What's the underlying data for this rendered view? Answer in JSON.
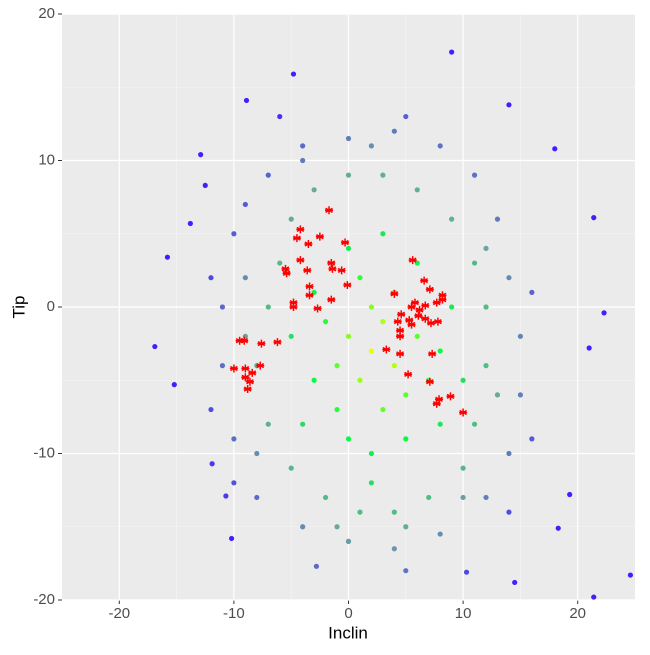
{
  "chart_data": {
    "type": "scatter",
    "x_label": "Inclin",
    "y_label": "Tip",
    "xlim": [
      -25,
      25
    ],
    "ylim": [
      -20,
      20
    ],
    "xticks": [
      -20,
      -10,
      0,
      10,
      20
    ],
    "yticks": [
      -20,
      -10,
      0,
      10,
      20
    ],
    "x_minor": [
      -15,
      -5,
      5,
      15
    ],
    "y_minor": [
      -15,
      -5,
      5,
      15
    ],
    "grid": true,
    "series": [
      {
        "colors": [
          "#ffff00",
          "#00ff40",
          "#6fa3a0",
          "#4020ff"
        ],
        "marker": "circle",
        "x": [
          2,
          3,
          1,
          4,
          0,
          5,
          -1,
          3,
          2,
          6,
          -2,
          1,
          4,
          -1,
          5,
          0,
          7,
          -3,
          2,
          8,
          -3,
          6,
          0,
          3,
          -4,
          8,
          2,
          9,
          -5,
          10,
          -6,
          -7,
          -8,
          -7,
          -5,
          -2,
          1,
          4,
          7,
          10,
          11,
          12,
          12,
          11,
          9,
          6,
          3,
          0,
          -3,
          -5,
          -9,
          -8,
          13,
          10,
          -1,
          5,
          -9,
          12,
          -4,
          2,
          -10,
          -11,
          -11,
          -10,
          -8,
          -4,
          0,
          4,
          8,
          12,
          14,
          15,
          15,
          14,
          13,
          11,
          8,
          4,
          0,
          -4,
          -7,
          -9,
          -12,
          -12,
          16,
          14,
          -6,
          5,
          16,
          -10,
          -15.8,
          -16.9,
          -15.2,
          -12.9,
          -12.5,
          -13.8,
          -8.9,
          -4.8,
          9,
          14,
          18,
          21.4,
          22.3,
          21,
          24.6,
          21.4,
          14.5,
          18.3,
          19.3,
          -11.9,
          -10.7,
          -10.2,
          -2.8,
          5,
          10.3,
          0
        ],
        "y": [
          -3,
          -1,
          -5,
          -4,
          -2,
          -6,
          -4,
          -7,
          0,
          -2,
          -1,
          2,
          1,
          -7,
          -9,
          -9,
          -5,
          -5,
          -10,
          -3,
          1,
          3,
          4,
          5,
          -8,
          -8,
          -12,
          0,
          -2,
          -5,
          3,
          0,
          -4,
          -8,
          -11,
          -13,
          -14,
          -14,
          -13,
          -11,
          -8,
          -4,
          0,
          3,
          6,
          8,
          9,
          9,
          8,
          6,
          -2,
          -10,
          -6,
          -13,
          -15,
          -15,
          2,
          4,
          10,
          11,
          5,
          0,
          -4,
          -9,
          -13,
          -15,
          -16,
          -16.5,
          -15.5,
          -13,
          -10,
          -6,
          -2,
          2,
          6,
          9,
          11,
          12,
          11.5,
          11,
          9,
          7,
          2,
          -7,
          -9,
          -14,
          13,
          13,
          1,
          -12,
          3.4,
          -2.7,
          -5.3,
          10.4,
          8.3,
          5.7,
          14.1,
          15.9,
          17.4,
          13.8,
          10.8,
          6.1,
          -0.4,
          -2.8,
          -18.3,
          -19.8,
          -18.8,
          -15.1,
          -12.8,
          -10.7,
          -12.9,
          -15.8,
          -17.7,
          -18,
          -18.1,
          -16
        ]
      },
      {
        "color": "#ff0000",
        "marker": "star",
        "x": [
          -1.7,
          -4.2,
          -4.5,
          -2.5,
          -0.3,
          -3.5,
          -4.2,
          -1.5,
          -3.6,
          -1.4,
          -0.6,
          -5.5,
          -5.4,
          -0.1,
          -3.4,
          -3.4,
          -1.5,
          -4.8,
          -4.8,
          -2.7,
          -9.5,
          -9.1,
          -7.6,
          -6.2,
          -10,
          -9,
          -7.7,
          -8.4,
          -9,
          -8.6,
          -8.8,
          5.6,
          4.0,
          6.6,
          7.1,
          8.2,
          7.7,
          5.8,
          5.5,
          6.7,
          6.2,
          5.3,
          4.6,
          4.3,
          4.5,
          6.1,
          6.7,
          7.2,
          5.5,
          7.8,
          4.5,
          3.3,
          4.5,
          7.3,
          5.2,
          7.1,
          7.9,
          7.7,
          8.9,
          10.0,
          8.2
        ],
        "y": [
          6.6,
          5.3,
          4.7,
          4.8,
          4.4,
          4.3,
          3.2,
          3.0,
          2.5,
          2.6,
          2.5,
          2.6,
          2.3,
          1.5,
          1.4,
          0.8,
          0.5,
          0.3,
          0,
          -0.1,
          -2.3,
          -2.3,
          -2.5,
          -2.4,
          -4.2,
          -4.2,
          -4.0,
          -4.5,
          -4.8,
          -5.1,
          -5.6,
          3.2,
          0.9,
          1.8,
          1.2,
          0.8,
          0.3,
          0.3,
          0,
          0.1,
          -0.2,
          -0.9,
          -0.5,
          -1.0,
          -1.6,
          -0.6,
          -0.8,
          -1.1,
          -1.2,
          -1.0,
          -2.0,
          -2.9,
          -3.2,
          -3.2,
          -4.6,
          -5.1,
          -6.3,
          -6.6,
          -6.1,
          -7.2,
          0.5
        ]
      }
    ]
  }
}
